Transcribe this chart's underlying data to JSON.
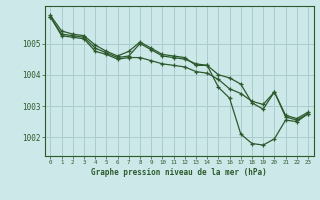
{
  "title": "Graphe pression niveau de la mer (hPa)",
  "background_color": "#cce8e8",
  "grid_color": "#aacccc",
  "line_color": "#2d5a2d",
  "xlim": [
    -0.5,
    23.5
  ],
  "ylim": [
    1001.4,
    1006.2
  ],
  "yticks": [
    1002,
    1003,
    1004,
    1005
  ],
  "xticks": [
    0,
    1,
    2,
    3,
    4,
    5,
    6,
    7,
    8,
    9,
    10,
    11,
    12,
    13,
    14,
    15,
    16,
    17,
    18,
    19,
    20,
    21,
    22,
    23
  ],
  "series": [
    [
      1005.9,
      1005.4,
      1005.3,
      1005.25,
      1004.95,
      1004.75,
      1004.6,
      1004.75,
      1005.05,
      1004.85,
      1004.65,
      1004.6,
      1004.55,
      1004.3,
      1004.3,
      1003.6,
      1003.25,
      1002.1,
      1001.8,
      1001.75,
      1001.95,
      1002.55,
      1002.5,
      1002.75
    ],
    [
      1005.85,
      1005.3,
      1005.25,
      1005.2,
      1004.85,
      1004.7,
      1004.55,
      1004.6,
      1005.0,
      1004.8,
      1004.6,
      1004.55,
      1004.5,
      1004.35,
      1004.3,
      1004.0,
      1003.9,
      1003.7,
      1003.1,
      1002.9,
      1003.45,
      1002.7,
      1002.6,
      1002.8
    ],
    [
      1005.85,
      1005.25,
      1005.2,
      1005.15,
      1004.75,
      1004.65,
      1004.5,
      1004.55,
      1004.55,
      1004.45,
      1004.35,
      1004.3,
      1004.25,
      1004.1,
      1004.05,
      1003.85,
      1003.55,
      1003.4,
      1003.15,
      1003.05,
      1003.45,
      1002.65,
      1002.55,
      1002.75
    ]
  ]
}
